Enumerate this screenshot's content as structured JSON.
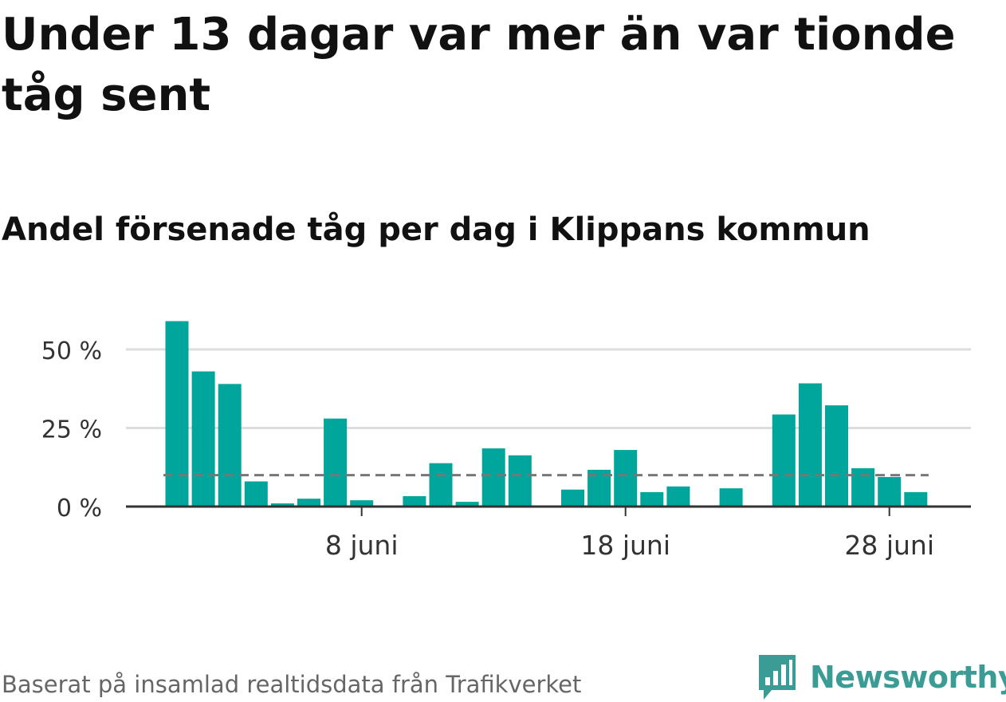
{
  "title": "Under 13 dagar var mer än var tionde tåg sent",
  "subtitle": "Andel försenade tåg per dag i Klippans kommun",
  "footer": "Baserat på insamlad realtidsdata från Trafikverket",
  "brand": {
    "name": "Newsworthy",
    "logo_icon": "bar-chart-speech-bubble-icon",
    "color": "#3a9c95"
  },
  "colors": {
    "bar": "#00a59b",
    "reference_line": "#777777",
    "grid": "#dddddd",
    "axis": "#333333"
  },
  "chart_data": {
    "type": "bar",
    "title": "Under 13 dagar var mer än var tionde tåg sent",
    "subtitle": "Andel försenade tåg per dag i Klippans kommun",
    "xlabel": "",
    "ylabel": "",
    "y_unit": "%",
    "ylim": [
      0,
      60
    ],
    "yticks": [
      {
        "value": 0,
        "label": "0 %"
      },
      {
        "value": 25,
        "label": "25 %"
      },
      {
        "value": 50,
        "label": "50 %"
      }
    ],
    "xticks": [
      {
        "day": 8,
        "label": "8 juni"
      },
      {
        "day": 18,
        "label": "18 juni"
      },
      {
        "day": 28,
        "label": "28 juni"
      }
    ],
    "grid": true,
    "reference_line": 10,
    "x": [
      1,
      2,
      3,
      4,
      5,
      6,
      7,
      8,
      9,
      10,
      11,
      12,
      13,
      14,
      15,
      16,
      17,
      18,
      19,
      20,
      21,
      22,
      23,
      24,
      25,
      26,
      27,
      28,
      29,
      30
    ],
    "values": [
      59,
      43,
      39,
      8,
      1,
      2.5,
      28,
      2,
      0,
      3.3,
      13.8,
      1.5,
      18.5,
      16.3,
      0,
      5.4,
      11.7,
      18,
      4.6,
      6.4,
      0,
      5.8,
      0,
      29.3,
      39.2,
      32.2,
      12.2,
      9.4,
      4.6,
      0
    ]
  }
}
